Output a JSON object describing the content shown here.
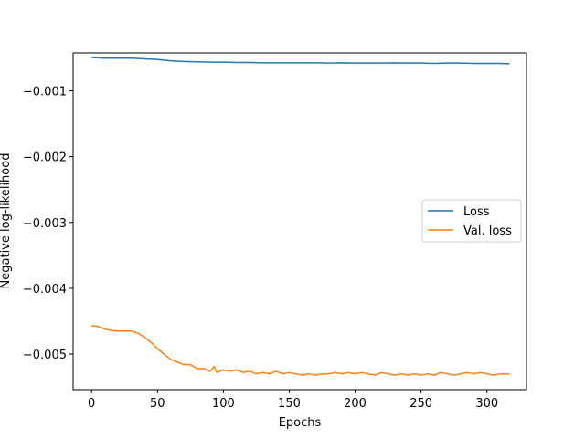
{
  "chart_data": {
    "type": "line",
    "title": "",
    "xlabel": "Epochs",
    "ylabel": "Negative log-likelihood",
    "xlim": [
      -14,
      330
    ],
    "ylim": [
      -0.00554,
      -0.000425
    ],
    "x_ticks": [
      0,
      50,
      100,
      150,
      200,
      250,
      300
    ],
    "x_tick_labels": [
      "0",
      "50",
      "100",
      "150",
      "200",
      "250",
      "300"
    ],
    "y_ticks": [
      -0.001,
      -0.002,
      -0.003,
      -0.004,
      -0.005
    ],
    "y_tick_labels": [
      "−0.001",
      "−0.002",
      "−0.003",
      "−0.004",
      "−0.005"
    ],
    "grid": false,
    "legend_position": "center-right",
    "series": [
      {
        "name": "Loss",
        "color": "#1f77b4",
        "x": [
          0,
          10,
          20,
          30,
          40,
          50,
          60,
          70,
          80,
          90,
          100,
          110,
          120,
          130,
          140,
          150,
          160,
          170,
          180,
          190,
          200,
          210,
          220,
          230,
          240,
          250,
          260,
          270,
          280,
          290,
          300,
          310,
          317
        ],
        "y": [
          -0.000495,
          -0.000505,
          -0.000505,
          -0.000505,
          -0.000515,
          -0.000525,
          -0.000545,
          -0.000555,
          -0.00056,
          -0.000565,
          -0.000565,
          -0.00057,
          -0.00057,
          -0.000575,
          -0.000575,
          -0.000575,
          -0.000575,
          -0.000575,
          -0.00058,
          -0.000575,
          -0.00058,
          -0.00058,
          -0.00058,
          -0.000575,
          -0.00058,
          -0.00058,
          -0.000585,
          -0.00058,
          -0.00058,
          -0.000585,
          -0.000585,
          -0.000585,
          -0.00059
        ]
      },
      {
        "name": "Val. loss",
        "color": "#ff7f0e",
        "x": [
          0,
          5,
          10,
          15,
          20,
          25,
          30,
          35,
          40,
          45,
          50,
          55,
          60,
          65,
          70,
          75,
          80,
          85,
          90,
          93,
          95,
          100,
          105,
          110,
          115,
          120,
          125,
          130,
          135,
          140,
          145,
          150,
          155,
          160,
          165,
          170,
          175,
          180,
          185,
          190,
          195,
          200,
          205,
          210,
          215,
          220,
          225,
          230,
          235,
          240,
          245,
          250,
          255,
          260,
          265,
          270,
          275,
          280,
          285,
          290,
          295,
          300,
          305,
          310,
          317
        ],
        "y": [
          -0.00457,
          -0.00458,
          -0.00462,
          -0.00464,
          -0.00465,
          -0.00465,
          -0.00465,
          -0.00468,
          -0.00474,
          -0.00482,
          -0.00492,
          -0.005,
          -0.00508,
          -0.00512,
          -0.00516,
          -0.00516,
          -0.00522,
          -0.00522,
          -0.00526,
          -0.00519,
          -0.00528,
          -0.00524,
          -0.00526,
          -0.00524,
          -0.00528,
          -0.00526,
          -0.0053,
          -0.00528,
          -0.0053,
          -0.00526,
          -0.0053,
          -0.00528,
          -0.0053,
          -0.00532,
          -0.0053,
          -0.00532,
          -0.0053,
          -0.0053,
          -0.00528,
          -0.0053,
          -0.00528,
          -0.0053,
          -0.00528,
          -0.0053,
          -0.00532,
          -0.00528,
          -0.0053,
          -0.00532,
          -0.0053,
          -0.00532,
          -0.0053,
          -0.00532,
          -0.0053,
          -0.00532,
          -0.00528,
          -0.0053,
          -0.00532,
          -0.0053,
          -0.00528,
          -0.0053,
          -0.00528,
          -0.0053,
          -0.00532,
          -0.0053,
          -0.0053
        ]
      }
    ]
  }
}
